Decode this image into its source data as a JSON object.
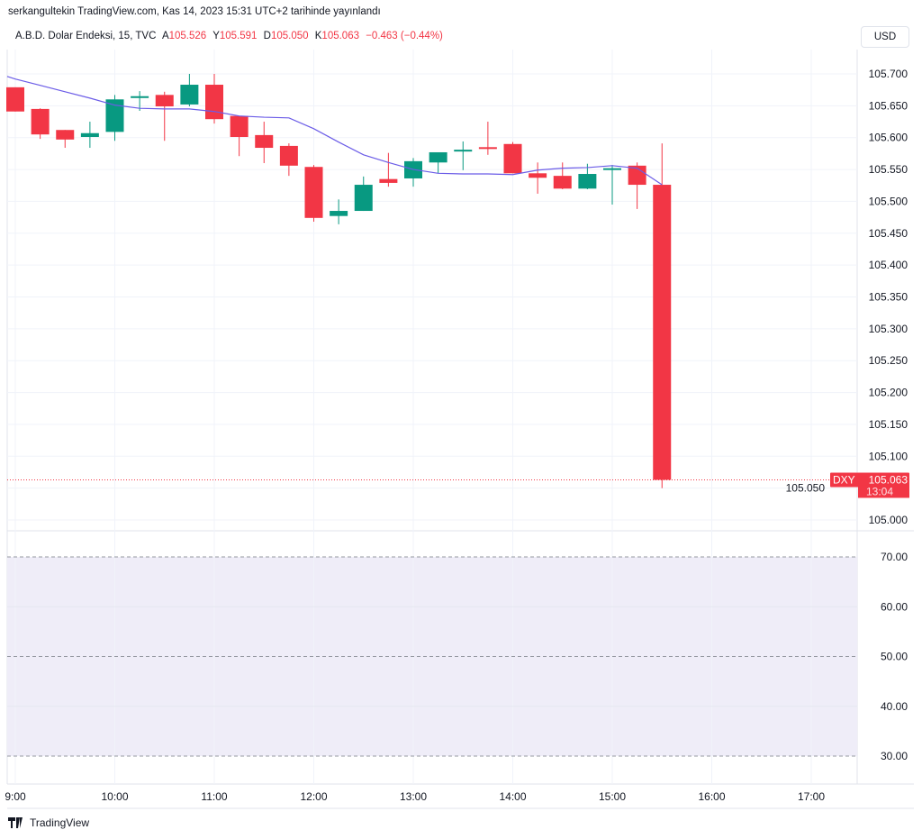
{
  "header": {
    "published": "serkangultekin TradingView.com, Kas 14, 2023 15:31 UTC+2 tarihinde yayınlandı"
  },
  "legend": {
    "symbol": "A.B.D. Dolar Endeksi, 15, TVC",
    "o_label": "A",
    "o": "105.526",
    "h_label": "Y",
    "h": "105.591",
    "l_label": "D",
    "l": "105.050",
    "c_label": "K",
    "c": "105.063",
    "change": "−0.463 (−0.44%)"
  },
  "currency_button": "USD",
  "price_tag": {
    "ticker": "DXY",
    "price": "105.063",
    "countdown": "13:04"
  },
  "watermark": "TradingView",
  "colors": {
    "up": "#089981",
    "down": "#f23645",
    "ma": "#6b5ce7",
    "rsi_band": "#efedf8"
  },
  "chart_data": [
    {
      "type": "candlestick",
      "interval": "15",
      "ylim": [
        105.0,
        105.7
      ],
      "yticks": [
        "105.700",
        "105.650",
        "105.600",
        "105.550",
        "105.500",
        "105.450",
        "105.400",
        "105.350",
        "105.300",
        "105.250",
        "105.200",
        "105.150",
        "105.100",
        "105.050",
        "105.000"
      ],
      "xticks": [
        "9:00",
        "10:00",
        "11:00",
        "12:00",
        "13:00",
        "14:00",
        "15:00",
        "16:00",
        "17:00"
      ],
      "grid": true,
      "times": [
        "9:00",
        "9:15",
        "9:30",
        "9:45",
        "10:00",
        "10:15",
        "10:30",
        "10:45",
        "11:00",
        "11:15",
        "11:30",
        "11:45",
        "12:00",
        "12:15",
        "12:30",
        "12:45",
        "13:00",
        "13:15",
        "13:30",
        "13:45",
        "14:00",
        "14:15",
        "14:30",
        "14:45",
        "15:00",
        "15:15",
        "15:30"
      ],
      "open": [
        105.679,
        105.645,
        105.612,
        105.601,
        105.609,
        105.663,
        105.667,
        105.652,
        105.683,
        105.634,
        105.604,
        105.587,
        105.554,
        105.477,
        105.485,
        105.535,
        105.536,
        105.561,
        105.58,
        105.585,
        105.59,
        105.544,
        105.54,
        105.52,
        105.55,
        105.556,
        105.526
      ],
      "high": [
        105.679,
        105.646,
        105.612,
        105.625,
        105.667,
        105.673,
        105.672,
        105.7,
        105.7,
        105.634,
        105.625,
        105.591,
        105.557,
        105.503,
        105.539,
        105.576,
        105.568,
        105.571,
        105.594,
        105.625,
        105.593,
        105.561,
        105.561,
        105.559,
        105.557,
        105.561,
        105.591
      ],
      "low": [
        105.641,
        105.598,
        105.584,
        105.584,
        105.595,
        105.642,
        105.595,
        105.649,
        105.622,
        105.571,
        105.56,
        105.54,
        105.468,
        105.464,
        105.485,
        105.523,
        105.523,
        105.544,
        105.549,
        105.573,
        105.544,
        105.512,
        105.519,
        105.519,
        105.495,
        105.488,
        105.05
      ],
      "close": [
        105.641,
        105.605,
        105.597,
        105.607,
        105.66,
        105.665,
        105.649,
        105.683,
        105.629,
        105.601,
        105.584,
        105.556,
        105.474,
        105.485,
        105.526,
        105.529,
        105.563,
        105.577,
        105.581,
        105.584,
        105.544,
        105.537,
        105.52,
        105.543,
        105.552,
        105.526,
        105.063
      ],
      "ma": [
        105.692,
        105.682,
        105.672,
        105.662,
        105.651,
        105.646,
        105.645,
        105.645,
        105.641,
        105.634,
        105.632,
        105.631,
        105.614,
        105.593,
        105.573,
        105.561,
        105.55,
        105.544,
        105.543,
        105.543,
        105.542,
        105.549,
        105.552,
        105.553,
        105.556,
        105.552,
        105.526
      ],
      "last_price": 105.063
    },
    {
      "type": "line",
      "ylim": [
        25,
        75
      ],
      "yticks": [
        "70.00",
        "60.00",
        "50.00",
        "40.00",
        "30.00"
      ],
      "band": [
        30,
        70
      ],
      "dashed_levels": [
        70,
        50,
        30
      ]
    }
  ]
}
